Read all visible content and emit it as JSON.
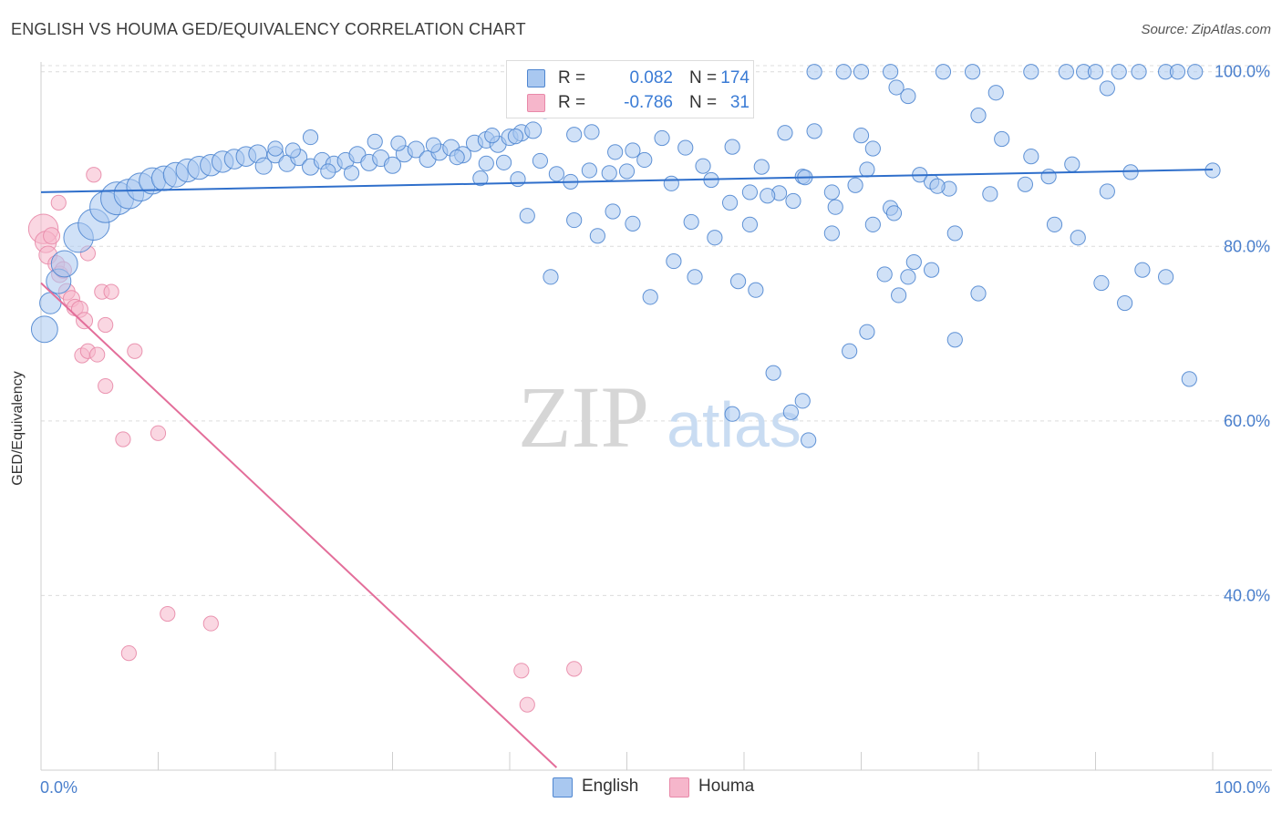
{
  "title": "ENGLISH VS HOUMA GED/EQUIVALENCY CORRELATION CHART",
  "source": "Source: ZipAtlas.com",
  "watermark": {
    "zip": "ZIP",
    "atlas": "atlas"
  },
  "legend": {
    "rows": [
      {
        "label_r": "R =",
        "r": "0.082",
        "label_n": "N =",
        "n": "174"
      },
      {
        "label_r": "R =",
        "r": "-0.786",
        "label_n": "N =",
        "n": "31"
      }
    ]
  },
  "bottom_legend": {
    "english": "English",
    "houma": "Houma"
  },
  "colors": {
    "english_fill": "#a9c8f0",
    "english_stroke": "#4f86d0",
    "english_line": "#2f6fcb",
    "houma_fill": "#f6b6cb",
    "houma_stroke": "#e889a9",
    "houma_line": "#e36e9a",
    "grid": "#dcdcdc",
    "tick_text": "#4a7fcc"
  },
  "chart_data": {
    "type": "scatter",
    "title": "ENGLISH VS HOUMA GED/EQUIVALENCY CORRELATION CHART",
    "xlabel": "",
    "ylabel": "GED/Equivalency",
    "xlim": [
      0,
      100
    ],
    "ylim": [
      20,
      103
    ],
    "x_tick_labels": [
      "0.0%",
      "100.0%"
    ],
    "y_ticks": [
      40,
      60,
      80,
      100
    ],
    "y_tick_labels": [
      "40.0%",
      "60.0%",
      "80.0%",
      "100.0%"
    ],
    "grid": true,
    "legend_position": "bottom",
    "series": [
      {
        "name": "English",
        "r": 0.082,
        "n": 174,
        "trend": {
          "x": [
            0,
            100
          ],
          "y": [
            86.2,
            88.8
          ]
        },
        "points": [
          [
            0.3,
            70.5,
            1.6
          ],
          [
            0.8,
            73.5,
            1.3
          ],
          [
            1.5,
            76,
            1.5
          ],
          [
            2.0,
            78,
            1.6
          ],
          [
            3.2,
            81,
            1.8
          ],
          [
            4.5,
            82.5,
            1.9
          ],
          [
            5.5,
            84.5,
            1.9
          ],
          [
            6.5,
            85.5,
            2.0
          ],
          [
            7.5,
            86,
            1.8
          ],
          [
            8.5,
            86.8,
            1.7
          ],
          [
            9.5,
            87.5,
            1.6
          ],
          [
            10.5,
            87.8,
            1.5
          ],
          [
            11.5,
            88.2,
            1.5
          ],
          [
            12.5,
            88.7,
            1.4
          ],
          [
            13.5,
            89,
            1.4
          ],
          [
            14.5,
            89.3,
            1.3
          ],
          [
            15.5,
            89.7,
            1.3
          ],
          [
            16.5,
            90,
            1.2
          ],
          [
            17.5,
            90.3,
            1.2
          ],
          [
            18.5,
            90.6,
            1.1
          ],
          [
            19.0,
            89.2,
            1.0
          ],
          [
            20.0,
            90.5,
            1.0
          ],
          [
            21.0,
            89.5,
            1.0
          ],
          [
            22.0,
            90.2,
            1.0
          ],
          [
            23.0,
            89.1,
            1.0
          ],
          [
            24.0,
            89.8,
            1.0
          ],
          [
            25.0,
            89.4,
            1.0
          ],
          [
            26.0,
            89.8,
            1.0
          ],
          [
            27.0,
            90.5,
            1.0
          ],
          [
            28.0,
            89.6,
            1.0
          ],
          [
            29.0,
            90.1,
            1.0
          ],
          [
            30.0,
            89.3,
            1.0
          ],
          [
            31.0,
            90.6,
            1.0
          ],
          [
            32.0,
            91.1,
            1.0
          ],
          [
            33.0,
            90.0,
            1.0
          ],
          [
            34.0,
            90.8,
            1.0
          ],
          [
            35.0,
            91.3,
            1.0
          ],
          [
            36.0,
            90.5,
            1.0
          ],
          [
            37.0,
            91.8,
            1.0
          ],
          [
            38.0,
            92.2,
            1.0
          ],
          [
            39.0,
            91.7,
            1.0
          ],
          [
            40.0,
            92.5,
            1.0
          ],
          [
            41.0,
            93.0,
            1.0
          ],
          [
            42.0,
            93.3,
            1.0
          ],
          [
            20.0,
            91.2,
            0.9
          ],
          [
            21.5,
            91.0,
            0.9
          ],
          [
            23.0,
            92.5,
            0.9
          ],
          [
            24.5,
            88.6,
            0.9
          ],
          [
            26.5,
            88.4,
            0.9
          ],
          [
            28.5,
            92.0,
            0.9
          ],
          [
            30.5,
            91.8,
            0.9
          ],
          [
            33.5,
            91.6,
            0.9
          ],
          [
            35.5,
            90.2,
            0.9
          ],
          [
            37.5,
            87.8,
            0.9
          ],
          [
            38.5,
            92.7,
            0.9
          ],
          [
            40.5,
            92.6,
            0.9
          ],
          [
            43.0,
            95.5,
            0.9
          ],
          [
            45.5,
            92.8,
            0.9
          ],
          [
            47.0,
            93.1,
            0.9
          ],
          [
            49.0,
            90.8,
            0.9
          ],
          [
            50.5,
            91.0,
            0.9
          ],
          [
            53.0,
            92.4,
            0.9
          ],
          [
            55.0,
            91.3,
            0.9
          ],
          [
            56.5,
            89.2,
            0.9
          ],
          [
            59.0,
            91.4,
            0.9
          ],
          [
            61.5,
            89.1,
            0.9
          ],
          [
            63.0,
            86.1,
            0.9
          ],
          [
            65.0,
            88.0,
            0.9
          ],
          [
            67.5,
            86.2,
            0.9
          ],
          [
            70.5,
            88.8,
            0.9
          ],
          [
            72.5,
            84.4,
            0.9
          ],
          [
            75.0,
            88.2,
            0.9
          ],
          [
            77.5,
            86.6,
            0.9
          ],
          [
            81.0,
            86.0,
            0.9
          ],
          [
            84.0,
            87.1,
            0.9
          ],
          [
            86.0,
            88.0,
            0.9
          ],
          [
            88.0,
            89.4,
            0.9
          ],
          [
            91.0,
            86.3,
            0.9
          ],
          [
            93.0,
            88.5,
            0.9
          ],
          [
            38.0,
            89.5,
            0.9
          ],
          [
            39.5,
            89.6,
            0.9
          ],
          [
            40.7,
            87.7,
            0.9
          ],
          [
            42.6,
            89.8,
            0.9
          ],
          [
            44.0,
            88.3,
            0.9
          ],
          [
            45.2,
            87.4,
            0.9
          ],
          [
            46.8,
            88.7,
            0.9
          ],
          [
            48.5,
            88.4,
            0.9
          ],
          [
            50.0,
            88.6,
            0.9
          ],
          [
            51.5,
            89.9,
            0.9
          ],
          [
            53.8,
            87.2,
            0.9
          ],
          [
            55.5,
            82.8,
            0.9
          ],
          [
            57.2,
            87.6,
            0.9
          ],
          [
            58.8,
            85.0,
            0.9
          ],
          [
            60.5,
            86.2,
            0.9
          ],
          [
            62.0,
            85.8,
            0.9
          ],
          [
            64.2,
            85.2,
            0.9
          ],
          [
            66.0,
            93.2,
            0.9
          ],
          [
            67.8,
            84.5,
            0.9
          ],
          [
            69.5,
            87.0,
            0.9
          ],
          [
            71.0,
            82.5,
            0.9
          ],
          [
            72.8,
            83.8,
            0.9
          ],
          [
            74.5,
            78.2,
            0.9
          ],
          [
            76.0,
            87.4,
            0.9
          ],
          [
            78.0,
            81.5,
            0.9
          ],
          [
            80.0,
            95.0,
            0.9
          ],
          [
            82.0,
            92.3,
            0.9
          ],
          [
            84.5,
            90.3,
            0.9
          ],
          [
            86.5,
            82.5,
            0.9
          ],
          [
            88.5,
            81.0,
            0.9
          ],
          [
            90.5,
            75.8,
            0.9
          ],
          [
            92.5,
            73.5,
            0.9
          ],
          [
            94.0,
            77.3,
            0.9
          ],
          [
            96.0,
            76.5,
            0.9
          ],
          [
            98.0,
            64.8,
            0.9
          ],
          [
            41.5,
            83.5,
            0.9
          ],
          [
            43.5,
            76.5,
            0.9
          ],
          [
            45.5,
            83.0,
            0.9
          ],
          [
            47.5,
            81.2,
            0.9
          ],
          [
            48.8,
            84.0,
            0.9
          ],
          [
            50.5,
            82.6,
            0.9
          ],
          [
            52.0,
            74.2,
            0.9
          ],
          [
            54.0,
            78.3,
            0.9
          ],
          [
            55.8,
            76.5,
            0.9
          ],
          [
            57.5,
            81.0,
            0.9
          ],
          [
            59.5,
            76.0,
            0.9
          ],
          [
            61.0,
            75.0,
            0.9
          ],
          [
            62.5,
            65.5,
            0.9
          ],
          [
            64.0,
            61.0,
            0.9
          ],
          [
            65.5,
            57.8,
            0.9
          ],
          [
            67.5,
            81.5,
            0.9
          ],
          [
            69.0,
            68.0,
            0.9
          ],
          [
            70.5,
            70.2,
            0.9
          ],
          [
            72.0,
            76.8,
            0.9
          ],
          [
            74.0,
            76.5,
            0.9
          ],
          [
            76.0,
            77.3,
            0.9
          ],
          [
            78.0,
            69.3,
            0.9
          ],
          [
            80.0,
            74.6,
            0.9
          ],
          [
            60.5,
            82.5,
            0.9
          ],
          [
            59.0,
            60.8,
            0.9
          ],
          [
            66.0,
            100,
            0.9
          ],
          [
            68.5,
            100,
            0.9
          ],
          [
            70.0,
            100,
            0.9
          ],
          [
            72.5,
            100,
            0.9
          ],
          [
            77.0,
            100,
            0.9
          ],
          [
            79.5,
            100,
            0.9
          ],
          [
            84.5,
            100,
            0.9
          ],
          [
            87.5,
            100,
            0.9
          ],
          [
            89.0,
            100,
            0.9
          ],
          [
            90.0,
            100,
            0.9
          ],
          [
            92.0,
            100,
            0.9
          ],
          [
            93.7,
            100,
            0.9
          ],
          [
            96.0,
            100,
            0.9
          ],
          [
            97.0,
            100,
            0.9
          ],
          [
            98.5,
            100,
            0.9
          ],
          [
            74.0,
            97.2,
            0.9
          ],
          [
            73.0,
            98.2,
            0.9
          ],
          [
            81.5,
            97.6,
            0.9
          ],
          [
            91.0,
            98.1,
            0.9
          ],
          [
            100.0,
            88.7,
            0.9
          ],
          [
            71.0,
            91.2,
            0.9
          ],
          [
            70.0,
            92.7,
            0.9
          ],
          [
            63.5,
            93.0,
            0.9
          ],
          [
            65.2,
            87.9,
            0.9
          ],
          [
            76.5,
            86.9,
            0.9
          ],
          [
            73.2,
            74.4,
            0.9
          ],
          [
            65.0,
            62.3,
            0.9
          ]
        ]
      },
      {
        "name": "Houma",
        "r": -0.786,
        "n": 31,
        "trend": {
          "x": [
            0,
            44
          ],
          "y": [
            75.8,
            20.3
          ]
        },
        "points": [
          [
            0.2,
            82,
            1.8
          ],
          [
            0.4,
            80.5,
            1.3
          ],
          [
            0.6,
            79,
            1.1
          ],
          [
            0.9,
            81.2,
            1.0
          ],
          [
            1.3,
            78,
            1.0
          ],
          [
            1.6,
            76.8,
            1.0
          ],
          [
            1.9,
            77.3,
            1.0
          ],
          [
            2.2,
            74.8,
            1.0
          ],
          [
            2.6,
            74.0,
            1.0
          ],
          [
            2.9,
            73.0,
            1.0
          ],
          [
            3.3,
            72.8,
            1.0
          ],
          [
            3.7,
            71.5,
            1.0
          ],
          [
            1.5,
            85,
            0.9
          ],
          [
            4.5,
            88.2,
            0.9
          ],
          [
            5.2,
            74.8,
            0.9
          ],
          [
            4.0,
            79.2,
            0.9
          ],
          [
            5.5,
            71.0,
            0.9
          ],
          [
            6.0,
            74.8,
            0.9
          ],
          [
            3.5,
            67.5,
            0.9
          ],
          [
            4.0,
            68,
            0.9
          ],
          [
            4.8,
            67.6,
            0.9
          ],
          [
            5.5,
            64.0,
            0.9
          ],
          [
            7.0,
            57.9,
            0.9
          ],
          [
            8.0,
            68,
            0.9
          ],
          [
            10.0,
            58.6,
            0.9
          ],
          [
            10.8,
            37.9,
            0.9
          ],
          [
            14.5,
            36.8,
            0.9
          ],
          [
            7.5,
            33.4,
            0.9
          ],
          [
            41.0,
            31.4,
            0.9
          ],
          [
            41.5,
            27.5,
            0.9
          ],
          [
            45.5,
            31.6,
            0.9
          ]
        ]
      }
    ]
  }
}
